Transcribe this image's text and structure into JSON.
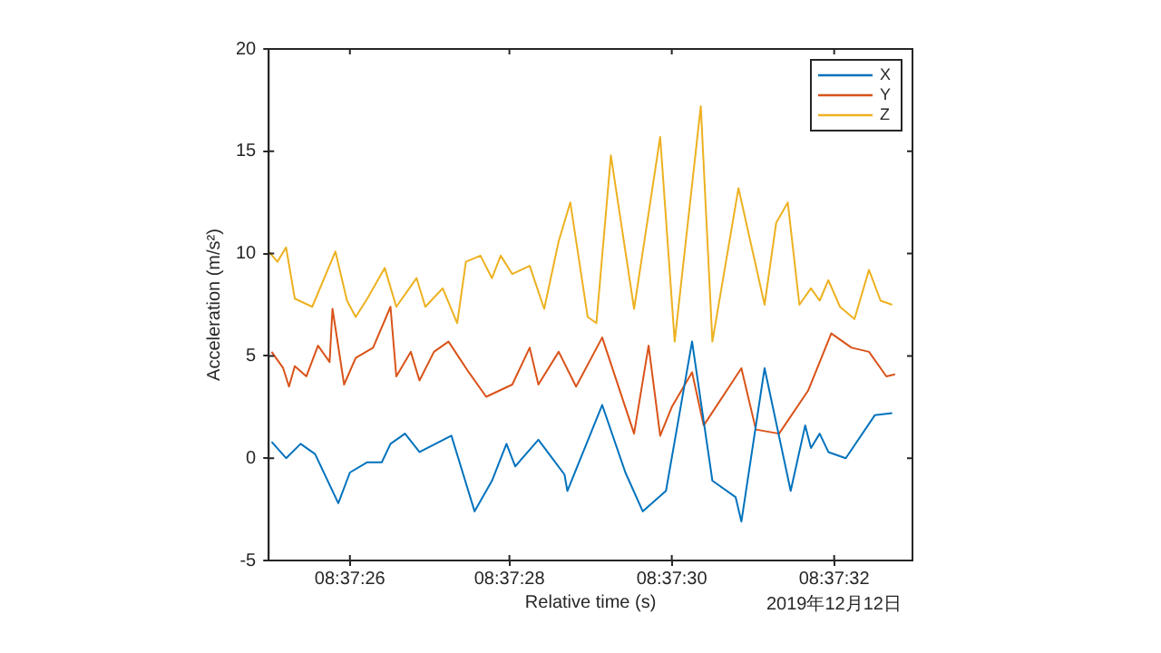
{
  "chart_data": {
    "type": "line",
    "xlabel": "Relative time (s)",
    "ylabel": "Acceleration (m/s²)",
    "xlim": [
      8.62361,
      8.62583
    ],
    "ylim": [
      -5,
      20
    ],
    "xticks": [
      {
        "value": 8.62389,
        "label": "08:37:26"
      },
      {
        "value": 8.62444,
        "label": "08:37:28"
      },
      {
        "value": 8.625,
        "label": "08:37:30"
      },
      {
        "value": 8.62556,
        "label": "08:37:32"
      }
    ],
    "yticks": [
      -5,
      0,
      5,
      10,
      15,
      20
    ],
    "grid": false,
    "legend": "top right",
    "marker": "none",
    "line_style": "solid",
    "annotations": [
      "2019年12月12日"
    ],
    "series": [
      {
        "name": "X",
        "color": "#0072bd",
        "x": [
          8.62362,
          8.62367,
          8.62372,
          8.62377,
          8.62385,
          8.62389,
          8.62395,
          8.624,
          8.62403,
          8.62408,
          8.62413,
          8.62424,
          8.62432,
          8.62438,
          8.62443,
          8.62446,
          8.62454,
          8.62463,
          8.62464,
          8.62476,
          8.62484,
          8.6249,
          8.62498,
          8.62507,
          8.62514,
          8.62522,
          8.62524,
          8.62532,
          8.62541,
          8.62546,
          8.62548,
          8.62551,
          8.62554,
          8.6256,
          8.6257,
          8.62576
        ],
        "values": [
          0.8,
          0.0,
          0.7,
          0.2,
          -2.2,
          -0.7,
          -0.2,
          -0.2,
          0.7,
          1.2,
          0.3,
          1.1,
          -2.6,
          -1.1,
          0.7,
          -0.4,
          0.9,
          -0.8,
          -1.6,
          2.6,
          -0.7,
          -2.6,
          -1.6,
          5.7,
          -1.1,
          -1.9,
          -3.1,
          4.4,
          -1.6,
          1.6,
          0.5,
          1.2,
          0.3,
          0.0,
          2.1,
          2.2
        ]
      },
      {
        "name": "Y",
        "color": "#d95319",
        "x": [
          8.62362,
          8.62366,
          8.62368,
          8.6237,
          8.62374,
          8.62378,
          8.62382,
          8.62383,
          8.62387,
          8.62391,
          8.62397,
          8.62403,
          8.62405,
          8.6241,
          8.62413,
          8.62418,
          8.62423,
          8.6243,
          8.62436,
          8.62445,
          8.62451,
          8.62454,
          8.62461,
          8.62467,
          8.62476,
          8.62487,
          8.62492,
          8.62496,
          8.625,
          8.62507,
          8.62511,
          8.62524,
          8.62529,
          8.62537,
          8.62547,
          8.62555,
          8.62562,
          8.62568,
          8.62574,
          8.62577
        ],
        "values": [
          5.2,
          4.4,
          3.5,
          4.5,
          4.0,
          5.5,
          4.7,
          7.3,
          3.6,
          4.9,
          5.4,
          7.4,
          4.0,
          5.2,
          3.8,
          5.2,
          5.7,
          4.2,
          3.0,
          3.6,
          5.4,
          3.6,
          5.2,
          3.5,
          5.9,
          1.2,
          5.5,
          1.1,
          2.5,
          4.2,
          1.6,
          4.4,
          1.4,
          1.2,
          3.3,
          6.1,
          5.4,
          5.2,
          4.0,
          4.1
        ]
      },
      {
        "name": "Z",
        "color": "#edb120",
        "x": [
          8.62361,
          8.62364,
          8.62367,
          8.6237,
          8.62376,
          8.62384,
          8.62388,
          8.62391,
          8.62395,
          8.62401,
          8.62405,
          8.62412,
          8.62415,
          8.62421,
          8.62426,
          8.62429,
          8.62434,
          8.62438,
          8.62441,
          8.62445,
          8.62451,
          8.62456,
          8.62461,
          8.62465,
          8.62471,
          8.62474,
          8.62479,
          8.62487,
          8.62496,
          8.62501,
          8.6251,
          8.62514,
          8.62523,
          8.62532,
          8.62536,
          8.6254,
          8.62544,
          8.62548,
          8.62551,
          8.62554,
          8.62558,
          8.62563,
          8.62568,
          8.62572,
          8.62576
        ],
        "values": [
          10.1,
          9.6,
          10.3,
          7.8,
          7.4,
          10.1,
          7.7,
          6.9,
          7.8,
          9.3,
          7.4,
          8.8,
          7.4,
          8.3,
          6.6,
          9.6,
          9.9,
          8.8,
          9.9,
          9.0,
          9.4,
          7.3,
          10.6,
          12.5,
          6.9,
          6.6,
          14.8,
          7.3,
          15.7,
          5.7,
          17.2,
          5.7,
          13.2,
          7.5,
          11.5,
          12.5,
          7.5,
          8.3,
          7.7,
          8.7,
          7.4,
          6.8,
          9.2,
          7.7,
          7.5
        ]
      }
    ]
  }
}
